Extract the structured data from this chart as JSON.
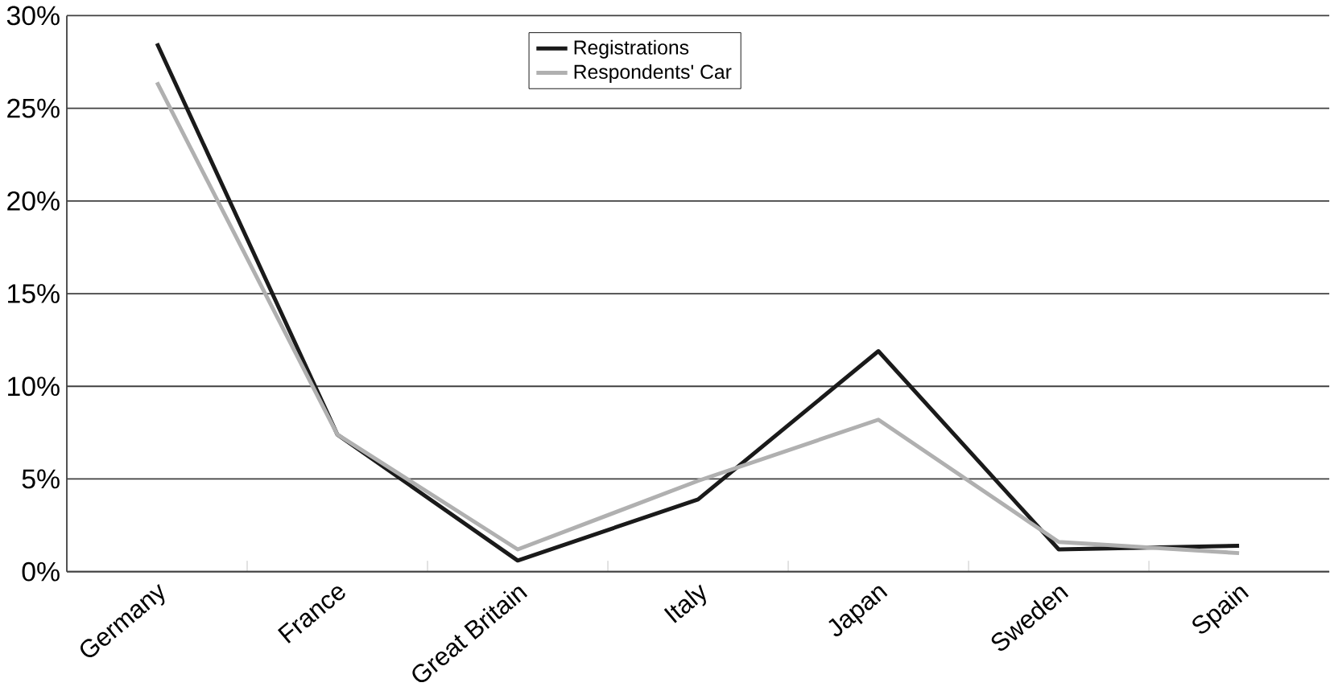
{
  "chart_data": {
    "type": "line",
    "categories": [
      "Germany",
      "France",
      "Great Britain",
      "Italy",
      "Japan",
      "Sweden",
      "Spain"
    ],
    "series": [
      {
        "name": "Registrations",
        "color": "#1a1a1a",
        "values": [
          28.5,
          7.4,
          0.6,
          3.9,
          11.9,
          1.2,
          1.4
        ]
      },
      {
        "name": "Respondents' Car",
        "color": "#b0b0b0",
        "values": [
          26.4,
          7.4,
          1.2,
          4.9,
          8.2,
          1.6,
          1.0
        ]
      }
    ],
    "ylim": [
      0,
      30
    ],
    "yticks": [
      {
        "value": 0,
        "label": "0%"
      },
      {
        "value": 5,
        "label": "5%"
      },
      {
        "value": 10,
        "label": "10%"
      },
      {
        "value": 15,
        "label": "15%"
      },
      {
        "value": 20,
        "label": "20%"
      },
      {
        "value": 25,
        "label": "25%"
      },
      {
        "value": 30,
        "label": "30%"
      }
    ],
    "grid": "y",
    "legend": "top",
    "marker": "none",
    "line_style": "solid"
  }
}
